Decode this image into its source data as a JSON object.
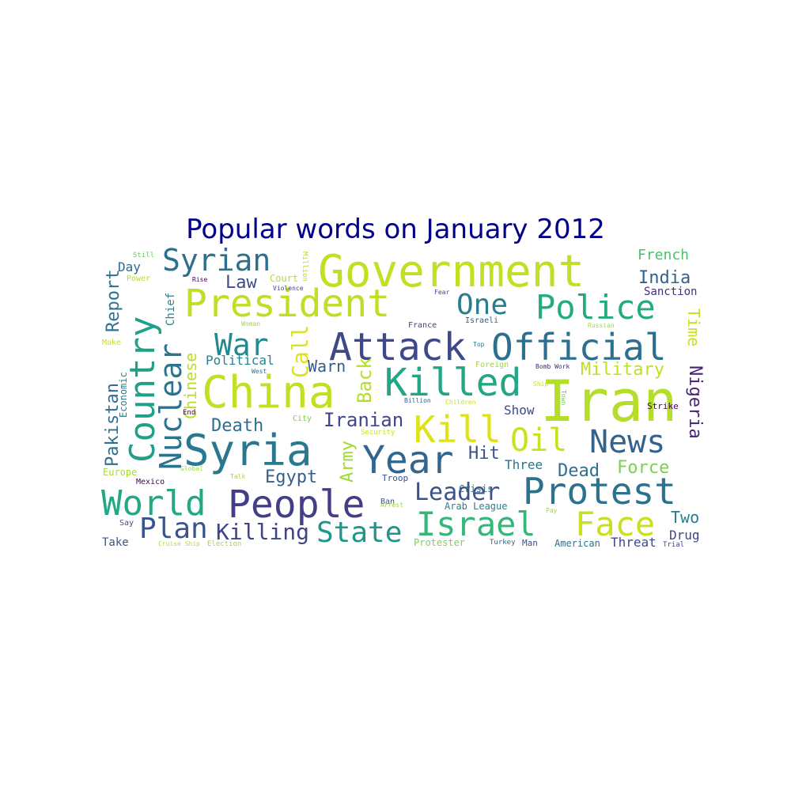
{
  "chart_data": {
    "type": "wordcloud",
    "title": "Popular words on January 2012",
    "words": [
      {
        "text": "Government",
        "color": "#c2df23"
      },
      {
        "text": "President",
        "color": "#bddf26"
      },
      {
        "text": "Attack",
        "color": "#3e4989"
      },
      {
        "text": "Official",
        "color": "#2d708e"
      },
      {
        "text": "China",
        "color": "#c2df23"
      },
      {
        "text": "Iran",
        "color": "#b5de2b"
      },
      {
        "text": "Syria",
        "color": "#2a788e"
      },
      {
        "text": "Killed",
        "color": "#22a785"
      },
      {
        "text": "Country",
        "color": "#1fa088"
      },
      {
        "text": "People",
        "color": "#433e85"
      },
      {
        "text": "Protest",
        "color": "#2c728e"
      },
      {
        "text": "World",
        "color": "#22a884"
      },
      {
        "text": "Year",
        "color": "#31668e"
      },
      {
        "text": "Nuclear",
        "color": "#2c738e"
      },
      {
        "text": "Israel",
        "color": "#35b779"
      },
      {
        "text": "Face",
        "color": "#c8e020"
      },
      {
        "text": "News",
        "color": "#33638d"
      },
      {
        "text": "Police",
        "color": "#25ab82"
      },
      {
        "text": "Kill",
        "color": "#dde318"
      },
      {
        "text": "Oil",
        "color": "#cae11f"
      },
      {
        "text": "Syrian",
        "color": "#2d708e"
      },
      {
        "text": "War",
        "color": "#23898e"
      },
      {
        "text": "One",
        "color": "#287d8e"
      },
      {
        "text": "Leader",
        "color": "#3b528b"
      },
      {
        "text": "State",
        "color": "#1f968b"
      },
      {
        "text": "Plan",
        "color": "#39568c"
      },
      {
        "text": "Killing",
        "color": "#404588"
      },
      {
        "text": "Iranian",
        "color": "#3f4788"
      },
      {
        "text": "Death",
        "color": "#2e6e8e"
      },
      {
        "text": "Egypt",
        "color": "#355f8d"
      },
      {
        "text": "Pakistan",
        "color": "#2e6f8e"
      },
      {
        "text": "Report",
        "color": "#2c728e"
      },
      {
        "text": "Chinese",
        "color": "#b8de29"
      },
      {
        "text": "Call",
        "color": "#dde318"
      },
      {
        "text": "Back",
        "color": "#b5de2b"
      },
      {
        "text": "Army",
        "color": "#a0da39"
      },
      {
        "text": "Law",
        "color": "#3e4c8a"
      },
      {
        "text": "Military",
        "color": "#bddf26"
      },
      {
        "text": "Nigeria",
        "color": "#482475"
      },
      {
        "text": "Time",
        "color": "#c8e020"
      },
      {
        "text": "French",
        "color": "#4ac16d"
      },
      {
        "text": "India",
        "color": "#33638d"
      },
      {
        "text": "Sanction",
        "color": "#46307e"
      },
      {
        "text": "Force",
        "color": "#7ad151"
      },
      {
        "text": "Dead",
        "color": "#2d708e"
      },
      {
        "text": "Two",
        "color": "#287d8e"
      },
      {
        "text": "Drug",
        "color": "#404688"
      },
      {
        "text": "Threat",
        "color": "#3e4a89"
      },
      {
        "text": "Hit",
        "color": "#3b528b"
      },
      {
        "text": "Three",
        "color": "#2c728e"
      },
      {
        "text": "Show",
        "color": "#3e4989"
      },
      {
        "text": "Warn",
        "color": "#355e8d"
      },
      {
        "text": "Political",
        "color": "#26828e"
      },
      {
        "text": "Day",
        "color": "#31688e"
      },
      {
        "text": "Chief",
        "color": "#26828e"
      },
      {
        "text": "Economic",
        "color": "#26828e"
      },
      {
        "text": "Europe",
        "color": "#a8db34"
      },
      {
        "text": "Mexico",
        "color": "#440154"
      },
      {
        "text": "Say",
        "color": "#3b528b"
      },
      {
        "text": "Take",
        "color": "#3b528b"
      },
      {
        "text": "Still",
        "color": "#6ccd5a"
      },
      {
        "text": "Power",
        "color": "#b5de2b"
      },
      {
        "text": "Rise",
        "color": "#440154"
      },
      {
        "text": "Court",
        "color": "#b5de2b"
      },
      {
        "text": "Million",
        "color": "#b5de2b"
      },
      {
        "text": "Violence",
        "color": "#414487"
      },
      {
        "text": "Make",
        "color": "#cae11f"
      },
      {
        "text": "Woman",
        "color": "#a0da39"
      },
      {
        "text": "West",
        "color": "#2c728e"
      },
      {
        "text": "End",
        "color": "#440154"
      },
      {
        "text": "City",
        "color": "#7ad151"
      },
      {
        "text": "Global",
        "color": "#a0da39"
      },
      {
        "text": "Talk",
        "color": "#a0da39"
      },
      {
        "text": "Fear",
        "color": "#404688"
      },
      {
        "text": "Israeli",
        "color": "#33638d"
      },
      {
        "text": "France",
        "color": "#404688"
      },
      {
        "text": "Top",
        "color": "#2c728e"
      },
      {
        "text": "Foreign",
        "color": "#a0da39"
      },
      {
        "text": "Bomb Work",
        "color": "#482878"
      },
      {
        "text": "Ship",
        "color": "#cae11f"
      },
      {
        "text": "Town",
        "color": "#6ccd5a"
      },
      {
        "text": "Billion",
        "color": "#33638d"
      },
      {
        "text": "Children",
        "color": "#cae11f"
      },
      {
        "text": "Troop",
        "color": "#3b528b"
      },
      {
        "text": "Security",
        "color": "#cae11f"
      },
      {
        "text": "Ban",
        "color": "#3b528b"
      },
      {
        "text": "Arrest",
        "color": "#a0da39"
      },
      {
        "text": "Crisis",
        "color": "#2c728e"
      },
      {
        "text": "Arab League",
        "color": "#26828e"
      },
      {
        "text": "Pay",
        "color": "#a0da39"
      },
      {
        "text": "Protester",
        "color": "#7ad151"
      },
      {
        "text": "Turkey",
        "color": "#33638d"
      },
      {
        "text": "Man",
        "color": "#3b528b"
      },
      {
        "text": "American",
        "color": "#2c728e"
      },
      {
        "text": "Trial",
        "color": "#414487"
      },
      {
        "text": "Strike",
        "color": "#440154"
      },
      {
        "text": "Russian",
        "color": "#a0da39"
      },
      {
        "text": "Cruise Ship",
        "color": "#b5de2b"
      },
      {
        "text": "Election",
        "color": "#a0da39"
      }
    ]
  }
}
